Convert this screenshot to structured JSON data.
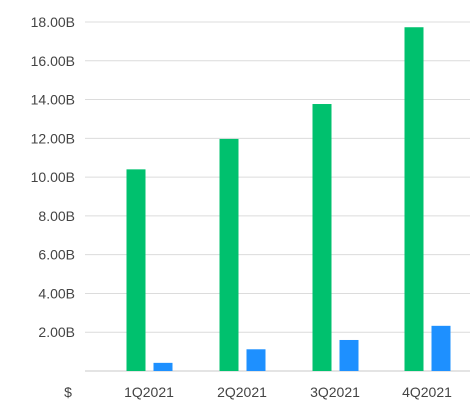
{
  "chart_data": {
    "type": "bar",
    "title": "",
    "xlabel": "",
    "ylabel": "",
    "y_axis_unit_label": "$",
    "categories": [
      "1Q2021",
      "2Q2021",
      "3Q2021",
      "4Q2021"
    ],
    "series": [
      {
        "values": [
          10.4,
          11.97,
          13.77,
          17.73
        ],
        "color": "#00c16e"
      },
      {
        "values": [
          0.42,
          1.12,
          1.6,
          2.33
        ],
        "color": "#1e90ff"
      }
    ],
    "yticks": [
      0,
      2,
      4,
      6,
      8,
      10,
      12,
      14,
      16,
      18
    ],
    "ytick_labels": [
      "",
      "2.00B",
      "4.00B",
      "6.00B",
      "8.00B",
      "10.00B",
      "12.00B",
      "14.00B",
      "16.00B",
      "18.00B"
    ],
    "ylim": [
      0,
      18
    ],
    "grid": true,
    "legend": "none"
  }
}
